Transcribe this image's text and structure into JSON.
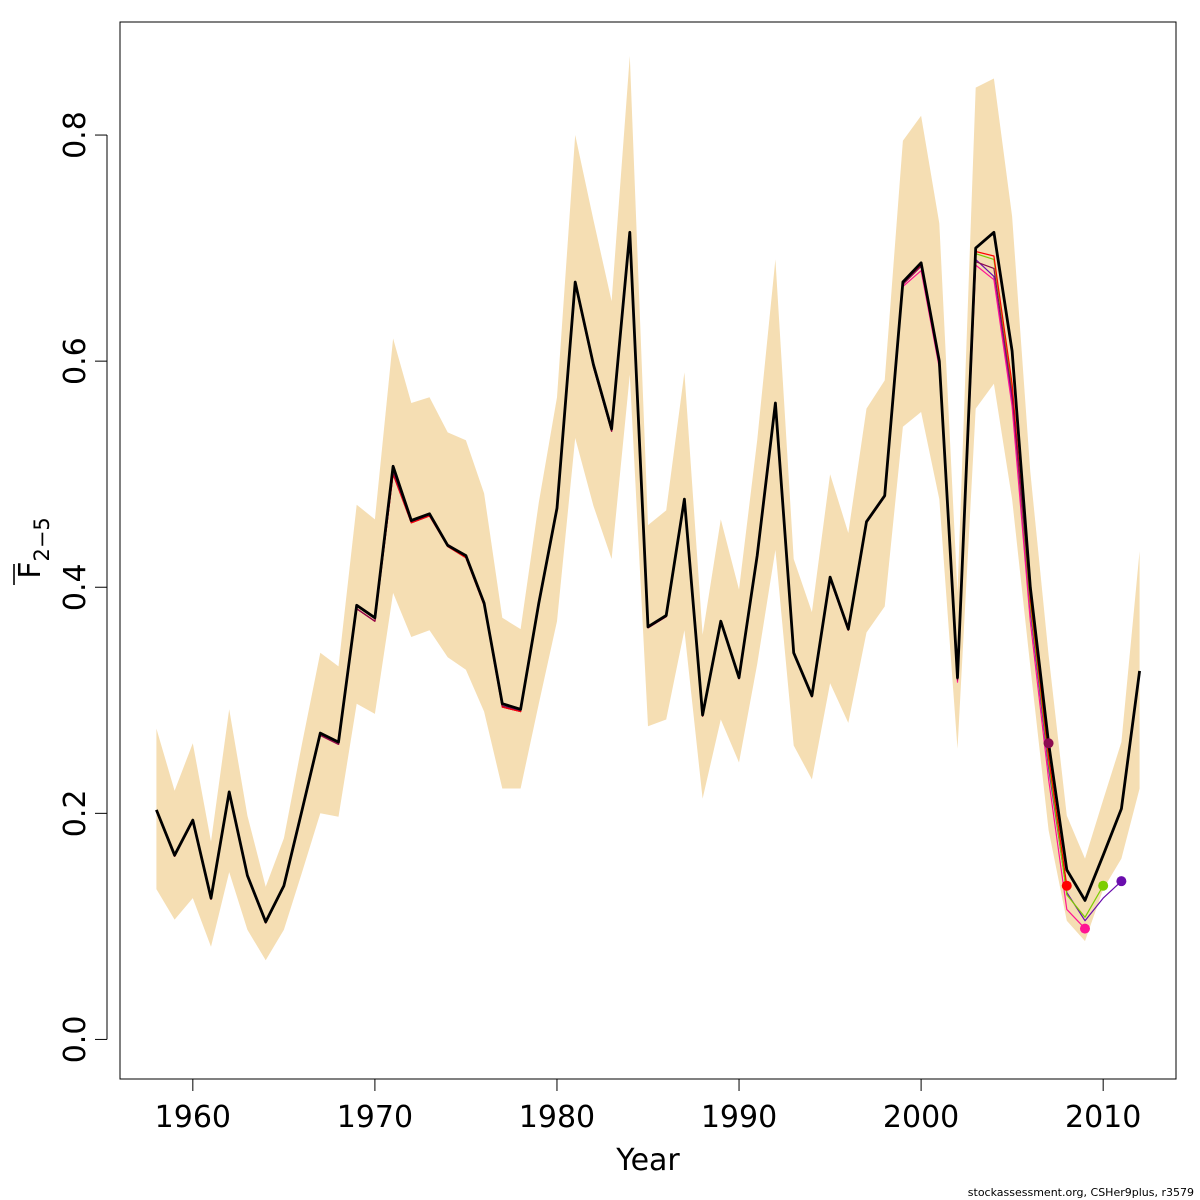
{
  "chart_data": {
    "type": "line",
    "xlabel": "Year",
    "ylabel": {
      "main": "F",
      "sub": "2−5"
    },
    "xlim": [
      1956,
      2014
    ],
    "ylim": [
      -0.035,
      0.9
    ],
    "x_ticks": [
      1960,
      1970,
      1980,
      1990,
      2000,
      2010
    ],
    "x_tick_labels": [
      "1960",
      "1970",
      "1980",
      "1990",
      "2000",
      "2010"
    ],
    "y_ticks": [
      0.0,
      0.2,
      0.4,
      0.6,
      0.8
    ],
    "y_tick_labels": [
      "0.0",
      "0.2",
      "0.4",
      "0.6",
      "0.8"
    ],
    "band_color": "#f5deb3",
    "main_color": "#000000",
    "footer": "stockassessment.org, CSHer9plus, r3579",
    "band": {
      "x": [
        1958,
        1959,
        1960,
        1961,
        1962,
        1963,
        1964,
        1965,
        1966,
        1967,
        1968,
        1969,
        1970,
        1971,
        1972,
        1973,
        1974,
        1975,
        1976,
        1977,
        1978,
        1979,
        1980,
        1981,
        1982,
        1983,
        1984,
        1985,
        1986,
        1987,
        1988,
        1989,
        1990,
        1991,
        1992,
        1993,
        1994,
        1995,
        1996,
        1997,
        1998,
        1999,
        2000,
        2001,
        2002,
        2003,
        2004,
        2005,
        2006,
        2007,
        2008,
        2009,
        2010,
        2011,
        2012
      ],
      "upper": [
        0.275,
        0.22,
        0.262,
        0.175,
        0.292,
        0.198,
        0.135,
        0.178,
        0.262,
        0.342,
        0.33,
        0.473,
        0.46,
        0.62,
        0.563,
        0.568,
        0.537,
        0.53,
        0.483,
        0.373,
        0.363,
        0.475,
        0.568,
        0.8,
        0.725,
        0.653,
        0.87,
        0.455,
        0.468,
        0.59,
        0.358,
        0.46,
        0.398,
        0.53,
        0.69,
        0.425,
        0.378,
        0.5,
        0.448,
        0.558,
        0.583,
        0.795,
        0.817,
        0.722,
        0.395,
        0.842,
        0.85,
        0.728,
        0.502,
        0.34,
        0.198,
        0.16,
        0.212,
        0.263,
        0.432
      ],
      "lower": [
        0.133,
        0.106,
        0.125,
        0.082,
        0.148,
        0.097,
        0.07,
        0.097,
        0.148,
        0.2,
        0.197,
        0.297,
        0.288,
        0.395,
        0.356,
        0.362,
        0.338,
        0.327,
        0.29,
        0.222,
        0.222,
        0.297,
        0.37,
        0.532,
        0.472,
        0.425,
        0.588,
        0.277,
        0.283,
        0.362,
        0.213,
        0.283,
        0.245,
        0.332,
        0.433,
        0.26,
        0.23,
        0.315,
        0.28,
        0.36,
        0.383,
        0.542,
        0.555,
        0.478,
        0.257,
        0.558,
        0.58,
        0.478,
        0.33,
        0.185,
        0.105,
        0.087,
        0.133,
        0.16,
        0.222
      ]
    },
    "series": [
      {
        "x": [
          1958,
          1959,
          1960,
          1961,
          1962,
          1963,
          1964,
          1965,
          1966,
          1967,
          1968,
          1969,
          1970,
          1971,
          1972,
          1973,
          1974,
          1975,
          1976,
          1977,
          1978,
          1979,
          1980,
          1981,
          1982,
          1983,
          1984,
          1985,
          1986,
          1987,
          1988,
          1989,
          1990,
          1991,
          1992,
          1993,
          1994,
          1995,
          1996,
          1997,
          1998,
          1999,
          2000,
          2001,
          2002,
          2003,
          2004,
          2005,
          2006,
          2007,
          2008,
          2009,
          2010,
          2011,
          2012
        ],
        "values": [
          0.203,
          0.163,
          0.194,
          0.125,
          0.219,
          0.145,
          0.104,
          0.136,
          0.203,
          0.271,
          0.263,
          0.384,
          0.373,
          0.507,
          0.459,
          0.465,
          0.437,
          0.428,
          0.386,
          0.297,
          0.292,
          0.386,
          0.47,
          0.67,
          0.597,
          0.54,
          0.714,
          0.365,
          0.375,
          0.478,
          0.287,
          0.37,
          0.32,
          0.428,
          0.563,
          0.342,
          0.304,
          0.409,
          0.363,
          0.458,
          0.481,
          0.67,
          0.687,
          0.6,
          0.32,
          0.7,
          0.714,
          0.609,
          0.4,
          0.262,
          0.15,
          0.123,
          0.163,
          0.204,
          0.326
        ],
        "color": "#000000",
        "width": 2.8
      },
      {
        "x": [
          1958,
          1959,
          1960,
          1961,
          1962,
          1963,
          1964,
          1965,
          1966,
          1967,
          1968,
          1969,
          1970,
          1971,
          1972,
          1973,
          1974,
          1975,
          1976,
          1977,
          1978,
          1979,
          1980,
          1981,
          1982,
          1983,
          1984,
          1985,
          1986,
          1987,
          1988,
          1989,
          1990,
          1991,
          1992,
          1993,
          1994,
          1995,
          1996,
          1997,
          1998,
          1999,
          2000,
          2001,
          2002,
          2003,
          2004,
          2005,
          2006,
          2007,
          2008,
          2009,
          2010,
          2011
        ],
        "values": [
          0.202,
          0.162,
          0.193,
          0.124,
          0.218,
          0.144,
          0.103,
          0.135,
          0.202,
          0.269,
          0.261,
          0.381,
          0.37,
          0.5,
          0.457,
          0.463,
          0.436,
          0.426,
          0.384,
          0.294,
          0.29,
          0.385,
          0.469,
          0.668,
          0.595,
          0.538,
          0.712,
          0.364,
          0.374,
          0.476,
          0.286,
          0.369,
          0.319,
          0.426,
          0.561,
          0.341,
          0.303,
          0.407,
          0.362,
          0.457,
          0.48,
          0.668,
          0.684,
          0.597,
          0.318,
          0.69,
          0.675,
          0.565,
          0.38,
          0.24,
          0.13,
          0.105,
          0.125,
          0.14
        ],
        "color": "#6a0dad",
        "width": 1.2,
        "end_point": {
          "x": 2011,
          "y": 0.14
        }
      },
      {
        "x": [
          1958,
          1959,
          1960,
          1961,
          1962,
          1963,
          1964,
          1965,
          1966,
          1967,
          1968,
          1969,
          1970,
          1971,
          1972,
          1973,
          1974,
          1975,
          1976,
          1977,
          1978,
          1979,
          1980,
          1981,
          1982,
          1983,
          1984,
          1985,
          1986,
          1987,
          1988,
          1989,
          1990,
          1991,
          1992,
          1993,
          1994,
          1995,
          1996,
          1997,
          1998,
          1999,
          2000,
          2001,
          2002,
          2003,
          2004,
          2005,
          2006,
          2007,
          2008,
          2009,
          2010
        ],
        "values": [
          0.202,
          0.162,
          0.193,
          0.124,
          0.218,
          0.144,
          0.103,
          0.135,
          0.202,
          0.269,
          0.261,
          0.381,
          0.37,
          0.5,
          0.457,
          0.463,
          0.436,
          0.426,
          0.384,
          0.294,
          0.29,
          0.385,
          0.469,
          0.668,
          0.595,
          0.538,
          0.712,
          0.364,
          0.376,
          0.476,
          0.286,
          0.369,
          0.319,
          0.426,
          0.561,
          0.341,
          0.303,
          0.407,
          0.362,
          0.457,
          0.48,
          0.668,
          0.686,
          0.6,
          0.318,
          0.695,
          0.69,
          0.575,
          0.385,
          0.245,
          0.128,
          0.108,
          0.136
        ],
        "color": "#7ccd00",
        "width": 1.2,
        "end_point": {
          "x": 2010,
          "y": 0.136
        }
      },
      {
        "x": [
          1958,
          1959,
          1960,
          1961,
          1962,
          1963,
          1964,
          1965,
          1966,
          1967,
          1968,
          1969,
          1970,
          1971,
          1972,
          1973,
          1974,
          1975,
          1976,
          1977,
          1978,
          1979,
          1980,
          1981,
          1982,
          1983,
          1984,
          1985,
          1986,
          1987,
          1988,
          1989,
          1990,
          1991,
          1992,
          1993,
          1994,
          1995,
          1996,
          1997,
          1998,
          1999,
          2000,
          2001,
          2002,
          2003,
          2004,
          2005,
          2006,
          2007,
          2008,
          2009
        ],
        "values": [
          0.202,
          0.162,
          0.193,
          0.124,
          0.218,
          0.144,
          0.103,
          0.135,
          0.202,
          0.269,
          0.261,
          0.381,
          0.37,
          0.5,
          0.457,
          0.463,
          0.436,
          0.426,
          0.384,
          0.294,
          0.29,
          0.385,
          0.469,
          0.668,
          0.595,
          0.538,
          0.712,
          0.364,
          0.374,
          0.476,
          0.286,
          0.369,
          0.319,
          0.426,
          0.561,
          0.341,
          0.303,
          0.407,
          0.362,
          0.457,
          0.48,
          0.666,
          0.68,
          0.594,
          0.316,
          0.685,
          0.672,
          0.56,
          0.37,
          0.23,
          0.115,
          0.098
        ],
        "color": "#ff1493",
        "width": 1.2,
        "end_point": {
          "x": 2009,
          "y": 0.098
        }
      },
      {
        "x": [
          1958,
          1959,
          1960,
          1961,
          1962,
          1963,
          1964,
          1965,
          1966,
          1967,
          1968,
          1969,
          1970,
          1971,
          1972,
          1973,
          1974,
          1975,
          1976,
          1977,
          1978,
          1979,
          1980,
          1981,
          1982,
          1983,
          1984,
          1985,
          1986,
          1987,
          1988,
          1989,
          1990,
          1991,
          1992,
          1993,
          1994,
          1995,
          1996,
          1997,
          1998,
          1999,
          2000,
          2001,
          2002,
          2003,
          2004,
          2005,
          2006,
          2007,
          2008
        ],
        "values": [
          0.202,
          0.162,
          0.193,
          0.124,
          0.218,
          0.144,
          0.103,
          0.135,
          0.202,
          0.269,
          0.261,
          0.381,
          0.37,
          0.5,
          0.457,
          0.463,
          0.436,
          0.426,
          0.384,
          0.294,
          0.29,
          0.385,
          0.469,
          0.668,
          0.595,
          0.538,
          0.712,
          0.364,
          0.374,
          0.476,
          0.286,
          0.369,
          0.319,
          0.426,
          0.561,
          0.341,
          0.303,
          0.407,
          0.362,
          0.457,
          0.48,
          0.668,
          0.685,
          0.598,
          0.318,
          0.697,
          0.693,
          0.58,
          0.39,
          0.25,
          0.136
        ],
        "color": "#ff0000",
        "width": 1.2,
        "end_point": {
          "x": 2008,
          "y": 0.136
        }
      },
      {
        "x": [
          1958,
          1959,
          1960,
          1961,
          1962,
          1963,
          1964,
          1965,
          1966,
          1967,
          1968,
          1969,
          1970,
          1971,
          1972,
          1973,
          1974,
          1975,
          1976,
          1977,
          1978,
          1979,
          1980,
          1981,
          1982,
          1983,
          1984,
          1985,
          1986,
          1987,
          1988,
          1989,
          1990,
          1991,
          1992,
          1993,
          1994,
          1995,
          1996,
          1997,
          1998,
          1999,
          2000,
          2001,
          2002,
          2003,
          2004,
          2005,
          2006,
          2007
        ],
        "values": [
          0.202,
          0.162,
          0.193,
          0.124,
          0.218,
          0.144,
          0.103,
          0.135,
          0.202,
          0.269,
          0.261,
          0.381,
          0.37,
          0.502,
          0.458,
          0.464,
          0.438,
          0.428,
          0.385,
          0.295,
          0.291,
          0.385,
          0.469,
          0.668,
          0.595,
          0.538,
          0.712,
          0.364,
          0.374,
          0.476,
          0.286,
          0.369,
          0.319,
          0.426,
          0.561,
          0.341,
          0.303,
          0.407,
          0.362,
          0.457,
          0.48,
          0.668,
          0.684,
          0.598,
          0.318,
          0.688,
          0.682,
          0.57,
          0.395,
          0.262
        ],
        "color": "#8b0a50",
        "width": 1.2,
        "end_point": {
          "x": 2007,
          "y": 0.262
        }
      }
    ]
  }
}
